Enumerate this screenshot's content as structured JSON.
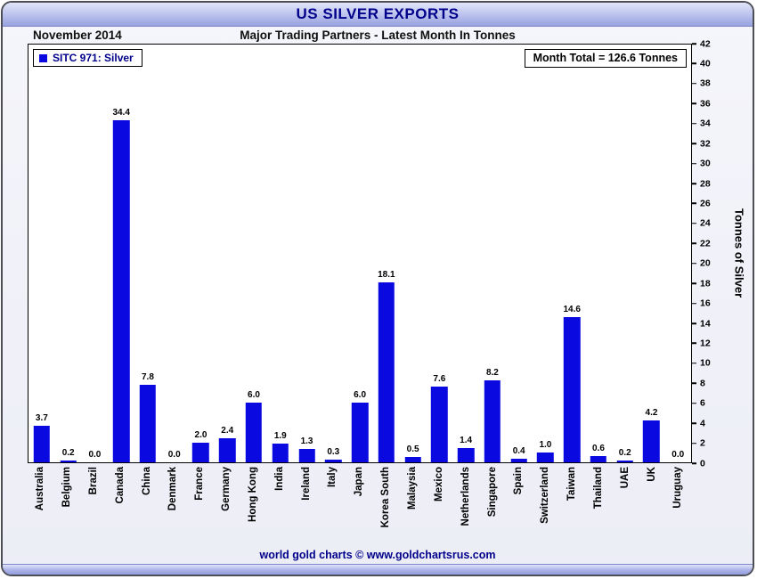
{
  "header": {
    "title": "US SILVER EXPORTS"
  },
  "subheader": {
    "date": "November 2014",
    "subtitle": "Major Trading Partners - Latest Month In Tonnes"
  },
  "legend": {
    "label": "SITC 971: Silver"
  },
  "annotation": {
    "month_total": "Month Total = 126.6 Tonnes"
  },
  "footer": {
    "credit": "world gold charts © www.goldchartsrus.com"
  },
  "colors": {
    "bar": "#0a0ae0",
    "title_text": "#00008b",
    "header_band": "#98a2e0"
  },
  "chart_data": {
    "type": "bar",
    "title": "US SILVER EXPORTS",
    "subtitle": "Major Trading Partners - Latest Month In Tonnes",
    "period": "November 2014",
    "series_name": "SITC 971: Silver",
    "categories": [
      "Australia",
      "Belgium",
      "Brazil",
      "Canada",
      "China",
      "Denmark",
      "France",
      "Germany",
      "Hong Kong",
      "India",
      "Ireland",
      "Italy",
      "Japan",
      "Korea South",
      "Malaysia",
      "Mexico",
      "Netherlands",
      "Singapore",
      "Spain",
      "Switzerland",
      "Taiwan",
      "Thailand",
      "UAE",
      "UK",
      "Uruguay"
    ],
    "values": [
      3.7,
      0.2,
      0.0,
      34.4,
      7.8,
      0.0,
      2.0,
      2.4,
      6.0,
      1.9,
      1.3,
      0.3,
      6.0,
      18.1,
      0.5,
      7.6,
      1.4,
      8.2,
      0.4,
      1.0,
      14.6,
      0.6,
      0.2,
      4.2,
      0.0
    ],
    "xlabel": "",
    "ylabel": "Tonnes of Silver",
    "ylim": [
      0,
      42
    ],
    "ytick_step": 2,
    "grid": false,
    "legend_position": "top-left",
    "value_labels": true,
    "month_total": 126.6
  }
}
